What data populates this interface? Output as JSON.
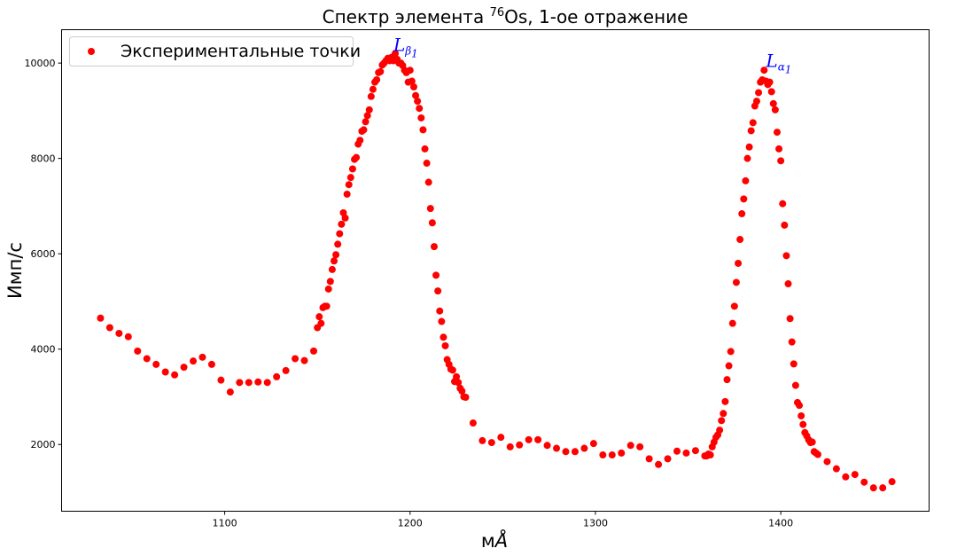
{
  "chart_data": {
    "type": "scatter",
    "title_prefix": "Спектр элемента ",
    "title_isotope": "76",
    "title_element": "Os",
    "title_suffix": ", 1-ое отражение",
    "xlabel_prefix": "м",
    "xlabel_unit": "Å",
    "ylabel": "Имп/с",
    "xlim": [
      1012,
      1480
    ],
    "ylim": [
      600,
      10700
    ],
    "xticks": [
      1100,
      1200,
      1300,
      1400
    ],
    "yticks": [
      2000,
      4000,
      6000,
      8000,
      10000
    ],
    "grid": false,
    "legend_position": "top-left",
    "colors": {
      "points": "#ff0000",
      "annotations": "#0000ff"
    },
    "series": [
      {
        "name": "Экспериментальные точки",
        "x": [
          1033,
          1038,
          1043,
          1048,
          1053,
          1058,
          1063,
          1068,
          1073,
          1078,
          1083,
          1088,
          1093,
          1098,
          1103,
          1108,
          1113,
          1118,
          1123,
          1128,
          1133,
          1138,
          1143,
          1148,
          1150,
          1151,
          1152,
          1153,
          1154,
          1155,
          1156,
          1157,
          1158,
          1159,
          1160,
          1161,
          1162,
          1163,
          1164,
          1165,
          1166,
          1167,
          1168,
          1169,
          1170,
          1171,
          1172,
          1173,
          1174,
          1175,
          1176,
          1177,
          1178,
          1179,
          1180,
          1181,
          1182,
          1183,
          1184,
          1185,
          1186,
          1187,
          1188,
          1189,
          1190,
          1191,
          1192,
          1193,
          1194,
          1195,
          1196,
          1197,
          1198,
          1199,
          1200,
          1201,
          1202,
          1203,
          1204,
          1205,
          1206,
          1207,
          1208,
          1209,
          1210,
          1211,
          1212,
          1213,
          1214,
          1215,
          1216,
          1217,
          1218,
          1219,
          1220,
          1221,
          1222,
          1223,
          1224,
          1225,
          1226,
          1227,
          1228,
          1229,
          1230,
          1234,
          1239,
          1244,
          1249,
          1254,
          1259,
          1264,
          1269,
          1274,
          1279,
          1284,
          1289,
          1294,
          1299,
          1304,
          1309,
          1314,
          1319,
          1324,
          1329,
          1334,
          1339,
          1344,
          1349,
          1354,
          1359,
          1360,
          1361,
          1362,
          1363,
          1364,
          1365,
          1366,
          1367,
          1368,
          1369,
          1370,
          1371,
          1372,
          1373,
          1374,
          1375,
          1376,
          1377,
          1378,
          1379,
          1380,
          1381,
          1382,
          1383,
          1384,
          1385,
          1386,
          1387,
          1388,
          1389,
          1390,
          1391,
          1392,
          1393,
          1394,
          1395,
          1396,
          1397,
          1398,
          1399,
          1400,
          1401,
          1402,
          1403,
          1404,
          1405,
          1406,
          1407,
          1408,
          1409,
          1410,
          1411,
          1412,
          1413,
          1414,
          1415,
          1416,
          1417,
          1418,
          1419,
          1420,
          1425,
          1430,
          1435,
          1440,
          1445,
          1450,
          1455,
          1460
        ],
        "y": [
          4650,
          4450,
          4330,
          4260,
          3960,
          3800,
          3680,
          3520,
          3460,
          3620,
          3750,
          3830,
          3680,
          3350,
          3100,
          3300,
          3300,
          3310,
          3300,
          3420,
          3550,
          3800,
          3760,
          3960,
          4450,
          4680,
          4540,
          4870,
          4900,
          4900,
          5260,
          5420,
          5670,
          5850,
          5980,
          6200,
          6420,
          6620,
          6860,
          6750,
          7250,
          7450,
          7600,
          7780,
          7980,
          8020,
          8300,
          8380,
          8570,
          8600,
          8770,
          8900,
          9020,
          9300,
          9450,
          9600,
          9650,
          9800,
          9820,
          9960,
          10000,
          10050,
          10100,
          10050,
          10120,
          10050,
          10200,
          10080,
          10000,
          10000,
          9950,
          9850,
          9800,
          9600,
          9850,
          9620,
          9500,
          9320,
          9200,
          9050,
          8850,
          8600,
          8200,
          7900,
          7500,
          6950,
          6650,
          6150,
          5550,
          5220,
          4800,
          4580,
          4250,
          4070,
          3780,
          3680,
          3580,
          3560,
          3320,
          3420,
          3300,
          3180,
          3120,
          3000,
          2990,
          2450,
          2080,
          2040,
          2150,
          1950,
          1990,
          2100,
          2100,
          1980,
          1920,
          1850,
          1850,
          1920,
          2020,
          1780,
          1780,
          1820,
          1980,
          1950,
          1700,
          1580,
          1700,
          1860,
          1820,
          1870,
          1760,
          1760,
          1800,
          1780,
          1950,
          2050,
          2150,
          2200,
          2300,
          2500,
          2650,
          2900,
          3360,
          3650,
          3950,
          4540,
          4900,
          5400,
          5800,
          6300,
          6840,
          7150,
          7530,
          8000,
          8240,
          8580,
          8750,
          9100,
          9200,
          9380,
          9600,
          9650,
          9850,
          9620,
          9550,
          9600,
          9400,
          9150,
          9020,
          8550,
          8200,
          7950,
          7050,
          6600,
          5960,
          5370,
          4640,
          4150,
          3690,
          3240,
          2880,
          2820,
          2600,
          2420,
          2250,
          2180,
          2100,
          2040,
          2050,
          1850,
          1820,
          1790,
          1640,
          1490,
          1320,
          1370,
          1210,
          1090,
          1090,
          1220
        ]
      }
    ],
    "annotations": [
      {
        "symbol": "L",
        "subscript_letter": "β",
        "subscript_digit": "1",
        "x": 1191,
        "y": 10250
      },
      {
        "symbol": "L",
        "subscript_letter": "α",
        "subscript_digit": "1",
        "x": 1392,
        "y": 9920
      }
    ]
  }
}
